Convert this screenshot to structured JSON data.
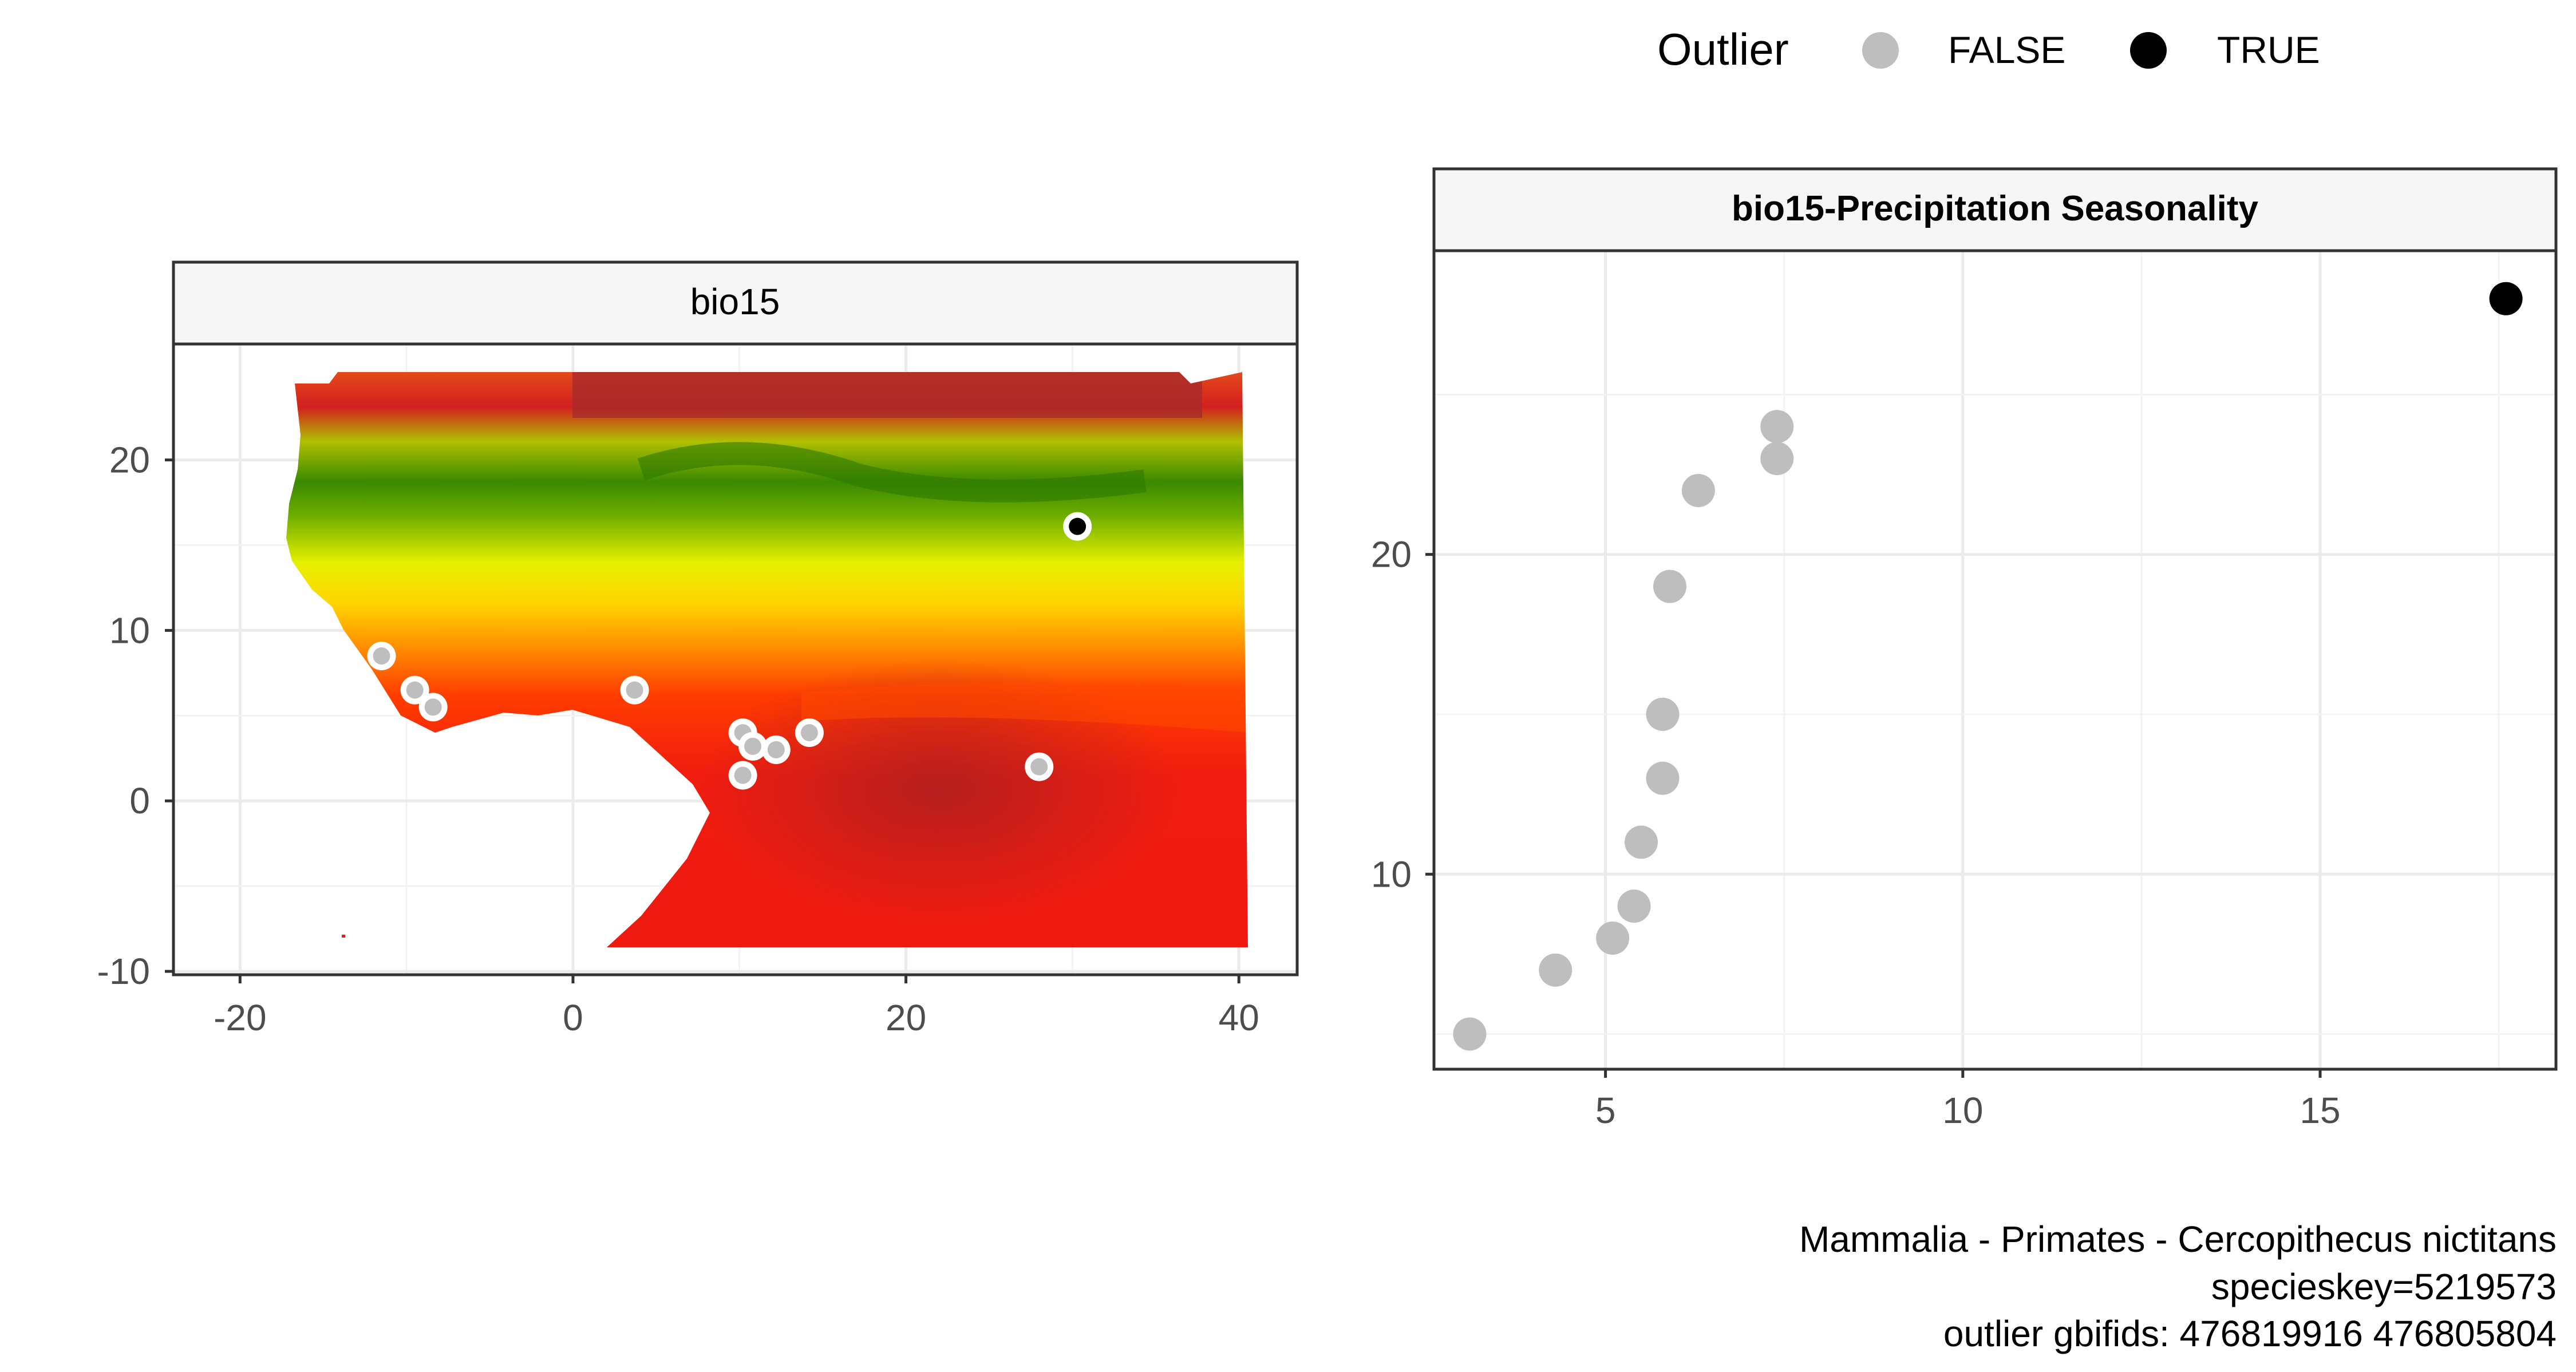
{
  "legend": {
    "title": "Outlier",
    "items": [
      {
        "label": "FALSE",
        "color": "#bebebe"
      },
      {
        "label": "TRUE",
        "color": "#000000"
      }
    ]
  },
  "caption": {
    "line1": "Mammalia - Primates - Cercopithecus nictitans",
    "line2": "specieskey=5219573",
    "line3": "outlier gbifids: 476819916 476805804"
  },
  "chart_data": [
    {
      "type": "map",
      "title": "bio15",
      "xlim": [
        -24,
        43.5
      ],
      "ylim": [
        -10.2,
        26.8
      ],
      "x_ticks": [
        -20,
        0,
        20,
        40
      ],
      "y_ticks": [
        -10,
        0,
        10,
        20
      ],
      "grid": true,
      "raster_extent": {
        "lon": [
          -17,
          40
        ],
        "lat": [
          -8.5,
          26
        ]
      },
      "points": [
        {
          "lon": -11.5,
          "lat": 8.5,
          "outlier": false
        },
        {
          "lon": -9.5,
          "lat": 6.5,
          "outlier": false
        },
        {
          "lon": -8.4,
          "lat": 5.5,
          "outlier": false
        },
        {
          "lon": 3.7,
          "lat": 6.5,
          "outlier": false
        },
        {
          "lon": 10.2,
          "lat": 4.0,
          "outlier": false
        },
        {
          "lon": 10.8,
          "lat": 3.2,
          "outlier": false
        },
        {
          "lon": 12.2,
          "lat": 3.0,
          "outlier": false
        },
        {
          "lon": 14.2,
          "lat": 4.0,
          "outlier": false
        },
        {
          "lon": 10.2,
          "lat": 1.5,
          "outlier": false
        },
        {
          "lon": 28.0,
          "lat": 2.0,
          "outlier": false
        },
        {
          "lon": 30.3,
          "lat": 16.1,
          "outlier": true
        }
      ]
    },
    {
      "type": "scatter",
      "title": "bio15-Precipitation Seasonality",
      "xlabel": "",
      "ylabel": "",
      "xlim": [
        2.6,
        18.3
      ],
      "ylim": [
        3.9,
        29.5
      ],
      "x_ticks": [
        5,
        10,
        15
      ],
      "y_ticks": [
        10,
        20
      ],
      "grid": true,
      "points": [
        {
          "x": 3.1,
          "y": 5.0,
          "outlier": false
        },
        {
          "x": 4.3,
          "y": 7.0,
          "outlier": false
        },
        {
          "x": 5.1,
          "y": 8.0,
          "outlier": false
        },
        {
          "x": 5.4,
          "y": 9.0,
          "outlier": false
        },
        {
          "x": 5.5,
          "y": 11.0,
          "outlier": false
        },
        {
          "x": 5.8,
          "y": 13.0,
          "outlier": false
        },
        {
          "x": 5.8,
          "y": 15.0,
          "outlier": false
        },
        {
          "x": 5.9,
          "y": 19.0,
          "outlier": false
        },
        {
          "x": 6.3,
          "y": 22.0,
          "outlier": false
        },
        {
          "x": 7.4,
          "y": 23.0,
          "outlier": false
        },
        {
          "x": 7.4,
          "y": 24.0,
          "outlier": false
        },
        {
          "x": 17.6,
          "y": 28.0,
          "outlier": true
        }
      ]
    }
  ]
}
